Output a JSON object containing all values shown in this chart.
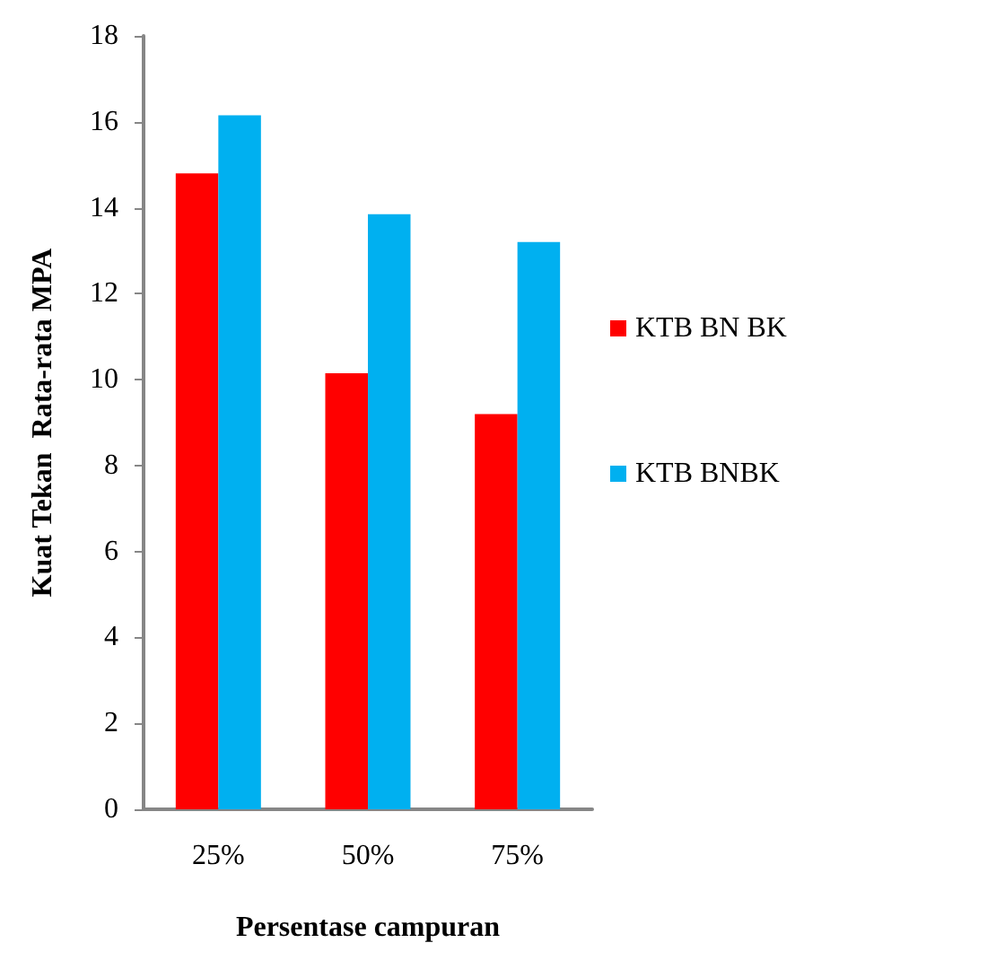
{
  "chart_data": {
    "type": "bar",
    "xlabel": "Persentase campuran",
    "ylabel": "Kuat Tekan  Rata-rata MPA",
    "categories": [
      "25%",
      "50%",
      "75%"
    ],
    "series": [
      {
        "name": "KTB BN BK",
        "color": "#ff0000",
        "values": [
          14.8,
          10.15,
          9.2
        ]
      },
      {
        "name": "KTB BNBK",
        "color": "#00b0f0",
        "values": [
          16.15,
          13.85,
          13.2
        ]
      }
    ],
    "ylim": [
      0,
      18
    ],
    "yticks": [
      0,
      2,
      4,
      6,
      8,
      10,
      12,
      14,
      16,
      18
    ],
    "grid": false,
    "legend": "right"
  }
}
